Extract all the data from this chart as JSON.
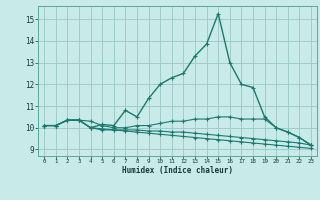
{
  "title": "",
  "xlabel": "Humidex (Indice chaleur)",
  "xlim": [
    -0.5,
    23.5
  ],
  "ylim": [
    8.7,
    15.6
  ],
  "xticks": [
    0,
    1,
    2,
    3,
    4,
    5,
    6,
    7,
    8,
    9,
    10,
    11,
    12,
    13,
    14,
    15,
    16,
    17,
    18,
    19,
    20,
    21,
    22,
    23
  ],
  "yticks": [
    9,
    10,
    11,
    12,
    13,
    14,
    15
  ],
  "bg_color": "#c8eae8",
  "grid_color": "#a0ccc8",
  "line_color": "#1a7a6e",
  "lines": [
    [
      10.1,
      10.1,
      10.35,
      10.35,
      10.0,
      10.15,
      10.1,
      10.8,
      10.5,
      11.35,
      12.0,
      12.3,
      12.5,
      13.3,
      13.85,
      15.25,
      13.0,
      12.0,
      11.85,
      10.5,
      10.0,
      9.8,
      9.55,
      9.2
    ],
    [
      10.1,
      10.1,
      10.35,
      10.35,
      10.3,
      10.1,
      10.0,
      10.0,
      10.1,
      10.1,
      10.2,
      10.3,
      10.3,
      10.4,
      10.4,
      10.5,
      10.5,
      10.4,
      10.4,
      10.4,
      10.0,
      9.8,
      9.55,
      9.2
    ],
    [
      10.1,
      10.1,
      10.35,
      10.35,
      10.0,
      9.9,
      9.9,
      9.9,
      9.9,
      9.85,
      9.85,
      9.8,
      9.8,
      9.75,
      9.7,
      9.65,
      9.6,
      9.55,
      9.5,
      9.45,
      9.4,
      9.35,
      9.3,
      9.2
    ],
    [
      10.1,
      10.1,
      10.35,
      10.35,
      10.0,
      9.95,
      9.9,
      9.85,
      9.8,
      9.75,
      9.7,
      9.65,
      9.6,
      9.55,
      9.5,
      9.45,
      9.4,
      9.35,
      9.3,
      9.25,
      9.2,
      9.15,
      9.1,
      9.05
    ]
  ]
}
